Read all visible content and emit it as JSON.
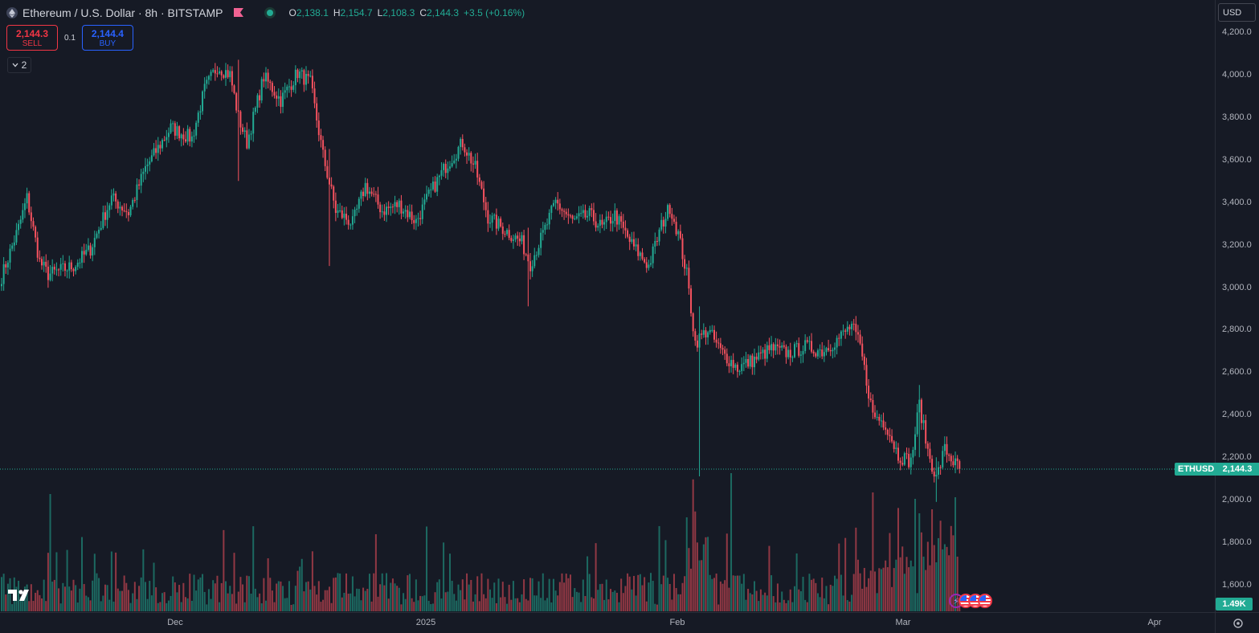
{
  "header": {
    "symbol_title": "Ethereum / U.S. Dollar · 8h · BITSTAMP",
    "symbol_icon": "ethereum-icon",
    "flag_icon": "flag-icon",
    "ohlc": {
      "o_label": "O",
      "o": "2,138.1",
      "h_label": "H",
      "h": "2,154.7",
      "l_label": "L",
      "l": "2,108.3",
      "c_label": "C",
      "c": "2,144.3",
      "change": "+3.5 (+0.16%)"
    }
  },
  "trade": {
    "sell_price": "2,144.3",
    "sell_label": "SELL",
    "spread": "0.1",
    "buy_price": "2,144.4",
    "buy_label": "BUY"
  },
  "indicators_collapsed_count": "2",
  "currency": "USD",
  "last_price_tag": {
    "symbol": "ETHUSD",
    "price": "2,144.3"
  },
  "volume_tag": "1.49K",
  "price_axis": {
    "ticks": [
      "4,200.0",
      "4,000.0",
      "3,800.0",
      "3,600.0",
      "3,400.0",
      "3,200.0",
      "3,000.0",
      "2,800.0",
      "2,600.0",
      "2,400.0",
      "2,200.0",
      "2,000.0",
      "1,800.0",
      "1,600.0"
    ]
  },
  "time_axis": {
    "ticks": [
      "Dec",
      "2025",
      "Feb",
      "Mar",
      "Apr"
    ]
  },
  "colors": {
    "up": "#22ab94",
    "down": "#f7525f",
    "background": "#161a25",
    "last_price_line": "#22ab94"
  },
  "chart_data": {
    "type": "candlestick",
    "timeframe": "8h",
    "ylim": [
      1500,
      4250
    ],
    "last_price": 2144.3,
    "anchors": [
      {
        "i": 0,
        "p": 3050
      },
      {
        "i": 8,
        "p": 3280
      },
      {
        "i": 12,
        "p": 3420
      },
      {
        "i": 18,
        "p": 3120
      },
      {
        "i": 22,
        "p": 3060
      },
      {
        "i": 34,
        "p": 3100
      },
      {
        "i": 42,
        "p": 3180
      },
      {
        "i": 52,
        "p": 3420
      },
      {
        "i": 60,
        "p": 3350
      },
      {
        "i": 68,
        "p": 3560
      },
      {
        "i": 80,
        "p": 3750
      },
      {
        "i": 90,
        "p": 3700
      },
      {
        "i": 96,
        "p": 3930
      },
      {
        "i": 102,
        "p": 4040
      },
      {
        "i": 108,
        "p": 4000
      },
      {
        "i": 112,
        "p": 3800
      },
      {
        "i": 116,
        "p": 3680
      },
      {
        "i": 124,
        "p": 3990
      },
      {
        "i": 132,
        "p": 3880
      },
      {
        "i": 140,
        "p": 4010
      },
      {
        "i": 146,
        "p": 3960
      },
      {
        "i": 152,
        "p": 3620
      },
      {
        "i": 158,
        "p": 3360
      },
      {
        "i": 166,
        "p": 3300
      },
      {
        "i": 172,
        "p": 3480
      },
      {
        "i": 180,
        "p": 3360
      },
      {
        "i": 188,
        "p": 3390
      },
      {
        "i": 196,
        "p": 3310
      },
      {
        "i": 202,
        "p": 3430
      },
      {
        "i": 210,
        "p": 3570
      },
      {
        "i": 218,
        "p": 3680
      },
      {
        "i": 224,
        "p": 3560
      },
      {
        "i": 230,
        "p": 3330
      },
      {
        "i": 238,
        "p": 3270
      },
      {
        "i": 246,
        "p": 3210
      },
      {
        "i": 250,
        "p": 3110
      },
      {
        "i": 256,
        "p": 3250
      },
      {
        "i": 262,
        "p": 3400
      },
      {
        "i": 270,
        "p": 3310
      },
      {
        "i": 278,
        "p": 3340
      },
      {
        "i": 284,
        "p": 3280
      },
      {
        "i": 290,
        "p": 3340
      },
      {
        "i": 298,
        "p": 3200
      },
      {
        "i": 306,
        "p": 3100
      },
      {
        "i": 312,
        "p": 3290
      },
      {
        "i": 316,
        "p": 3380
      },
      {
        "i": 320,
        "p": 3250
      },
      {
        "i": 324,
        "p": 3060
      },
      {
        "i": 328,
        "p": 2740
      },
      {
        "i": 334,
        "p": 2800
      },
      {
        "i": 340,
        "p": 2700
      },
      {
        "i": 348,
        "p": 2620
      },
      {
        "i": 356,
        "p": 2660
      },
      {
        "i": 364,
        "p": 2710
      },
      {
        "i": 372,
        "p": 2690
      },
      {
        "i": 380,
        "p": 2720
      },
      {
        "i": 388,
        "p": 2700
      },
      {
        "i": 396,
        "p": 2760
      },
      {
        "i": 402,
        "p": 2820
      },
      {
        "i": 406,
        "p": 2720
      },
      {
        "i": 412,
        "p": 2400
      },
      {
        "i": 418,
        "p": 2360
      },
      {
        "i": 424,
        "p": 2210
      },
      {
        "i": 430,
        "p": 2180
      },
      {
        "i": 434,
        "p": 2450
      },
      {
        "i": 438,
        "p": 2230
      },
      {
        "i": 442,
        "p": 2100
      },
      {
        "i": 446,
        "p": 2240
      },
      {
        "i": 450,
        "p": 2180
      },
      {
        "i": 453,
        "p": 2144
      }
    ],
    "spikes": [
      {
        "i": 330,
        "low": 2110,
        "high": 2910
      },
      {
        "i": 434,
        "low": 2200,
        "high": 2540
      },
      {
        "i": 155,
        "low": 3100,
        "high": 3650
      },
      {
        "i": 249,
        "low": 2910,
        "high": 3280
      },
      {
        "i": 112,
        "low": 3500,
        "high": 4070
      },
      {
        "i": 442,
        "low": 1990,
        "high": 2200
      }
    ],
    "volume_max_label": "1.49K"
  }
}
